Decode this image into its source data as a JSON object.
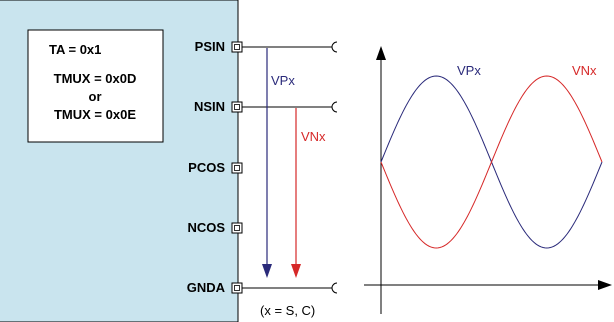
{
  "block": {
    "settings": {
      "line1": "TA = 0x1",
      "line2": "TMUX = 0x0D",
      "line3": "or",
      "line4": "TMUX = 0x0E"
    },
    "pins": {
      "psin": "PSIN",
      "nsin": "NSIN",
      "pcos": "PCOS",
      "ncos": "NCOS",
      "gnda": "GNDA"
    }
  },
  "measurement": {
    "vp_label": "VPx",
    "vn_label": "VNx",
    "note": "(x = S, C)"
  },
  "waveform": {
    "vp_label": "VPx",
    "vn_label": "VNx"
  },
  "colors": {
    "block_fill": "#c9e4ee",
    "vp": "#2a2a7a",
    "vn": "#d62828",
    "line": "#000000"
  }
}
